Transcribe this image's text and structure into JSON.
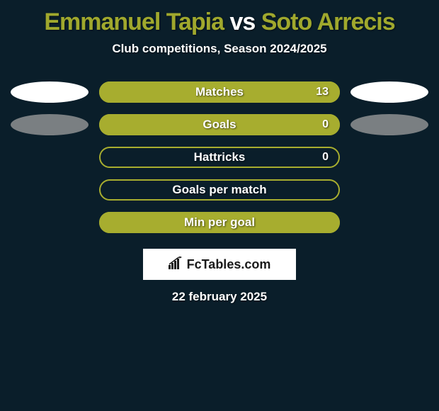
{
  "title_parts": {
    "p1": "Emmanuel Tapia",
    "vs": " vs ",
    "p2": "Soto Arrecis"
  },
  "title_colors": {
    "p1": "#a0a82d",
    "vs": "#ffffff",
    "p2": "#a0a82d"
  },
  "subtitle": "Club competitions, Season 2024/2025",
  "bars": [
    {
      "label": "Matches",
      "value": "13",
      "fill_pct": 100,
      "show_value": true,
      "left_ellipse": "white",
      "right_ellipse": "white"
    },
    {
      "label": "Goals",
      "value": "0",
      "fill_pct": 100,
      "show_value": true,
      "left_ellipse": "grey",
      "right_ellipse": "grey"
    },
    {
      "label": "Hattricks",
      "value": "0",
      "fill_pct": 0,
      "show_value": true,
      "left_ellipse": null,
      "right_ellipse": null
    },
    {
      "label": "Goals per match",
      "value": "",
      "fill_pct": 0,
      "show_value": false,
      "left_ellipse": null,
      "right_ellipse": null
    },
    {
      "label": "Min per goal",
      "value": "",
      "fill_pct": 100,
      "show_value": false,
      "left_ellipse": null,
      "right_ellipse": null
    }
  ],
  "bar_colors": {
    "border": "#a7ad2f",
    "fill": "#a7ad2f"
  },
  "logo_text": "FcTables.com",
  "date": "22 february 2025",
  "background_color": "#0a1e2a"
}
